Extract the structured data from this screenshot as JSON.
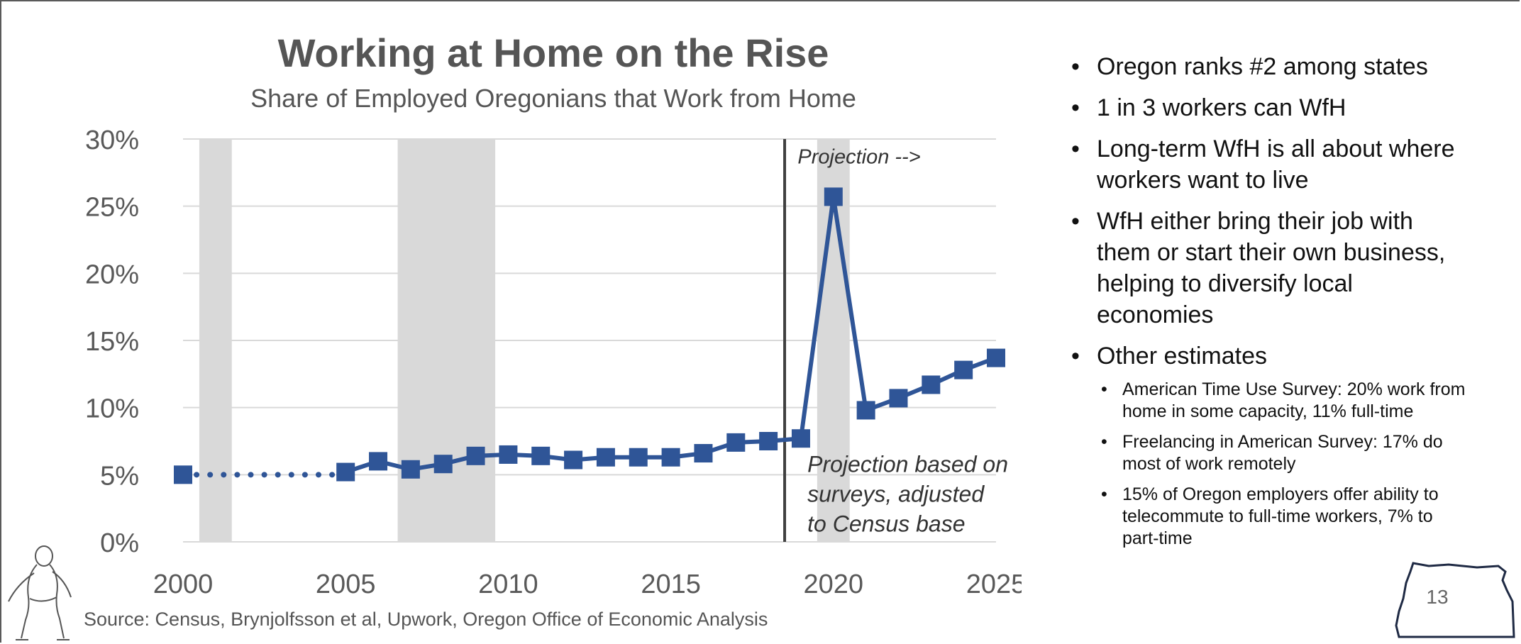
{
  "chart_data": {
    "type": "line",
    "title": "Working at Home on the Rise",
    "subtitle": "Share of Employed Oregonians that Work from Home",
    "xlabel": "",
    "ylabel": "",
    "xlim": [
      2000,
      2025
    ],
    "ylim": [
      0,
      30
    ],
    "x_ticks": [
      "2000",
      "2005",
      "2010",
      "2015",
      "2020",
      "2025"
    ],
    "y_ticks": [
      "0%",
      "5%",
      "10%",
      "15%",
      "20%",
      "25%",
      "30%"
    ],
    "grid": true,
    "series": [
      {
        "style": "dotted",
        "color": "#2f5597",
        "x": [
          2000,
          2005
        ],
        "y": [
          5.0,
          5.0
        ]
      },
      {
        "style": "solid-markers",
        "color": "#2f5597",
        "x": [
          2000,
          2005,
          2006,
          2007,
          2008,
          2009,
          2010,
          2011,
          2012,
          2013,
          2014,
          2015,
          2016,
          2017,
          2018,
          2019,
          2020,
          2021,
          2022,
          2023,
          2024,
          2025
        ],
        "y": [
          5.0,
          5.2,
          6.0,
          5.4,
          5.8,
          6.4,
          6.5,
          6.4,
          6.1,
          6.3,
          6.3,
          6.3,
          6.6,
          7.4,
          7.5,
          7.7,
          25.7,
          9.8,
          10.7,
          11.7,
          12.8,
          13.7
        ]
      }
    ],
    "shaded_periods": [
      [
        2000.5,
        2001.5
      ],
      [
        2006.6,
        2009.6
      ],
      [
        2019.5,
        2020.5
      ]
    ],
    "vertical_line_x": 2018.5,
    "annotations": [
      {
        "text": "Projection -->",
        "x": 2018.9,
        "y": 28.7
      },
      {
        "lines": [
          "Projection based on",
          "surveys, adjusted",
          "to Census base"
        ],
        "x": 2019.2,
        "y": 5.0
      }
    ]
  },
  "source": "Source: Census, Brynjolfsson et al, Upwork, Oregon Office of Economic Analysis",
  "bullets": [
    "Oregon ranks #2 among states",
    "1 in 3 workers can WfH",
    "Long-term WfH is all about where workers want to live",
    "WfH either bring their job with them or start their own business, helping to diversify local economies",
    "Other estimates"
  ],
  "sub_bullets": [
    "American Time Use Survey: 20% work from home in some capacity, 11% full-time",
    "Freelancing in American Survey: 17% do most of work remotely",
    "15% of Oregon employers offer ability to telecommute to full-time workers, 7% to part-time"
  ],
  "slide_number": "13",
  "colors": {
    "series": "#2f5597",
    "shade": "#d9d9d9",
    "grid": "#d9d9d9",
    "axis_text": "#595959"
  }
}
